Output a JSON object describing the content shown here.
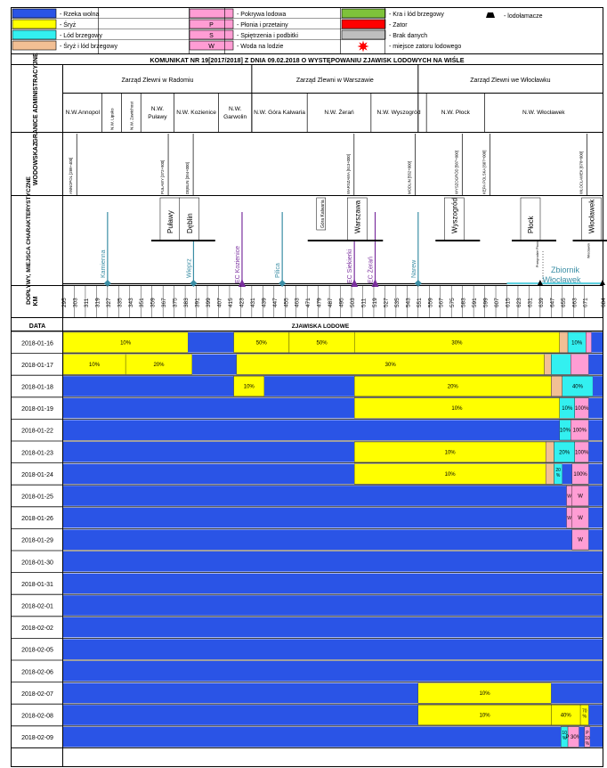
{
  "title": "KOMUNIKAT NR 19[2017/2018] Z DNIA 09.02.2018 O WYSTĘPOWANIU ZJAWISK LODOWYCH NA WIŚLE",
  "colors": {
    "wolna": "#2a54e6",
    "sryz": "#ffff00",
    "lod": "#33f0f0",
    "sryzlod": "#f2bf94",
    "pokrywa": "#ff9dd4",
    "kra": "#7ec23a",
    "zator": "#ff0000",
    "brak": "#bfbfbf",
    "border": "#000000"
  },
  "legend": [
    {
      "key": "wolna",
      "label": "- Rzeka wolna"
    },
    {
      "key": "sryz",
      "label": "- Śryż"
    },
    {
      "key": "lod",
      "label": "- Lód brzegowy"
    },
    {
      "key": "sryzlod",
      "label": "- Śryż i lód brzegowy"
    },
    {
      "key": "pokrywa",
      "label": "- Pokrywa lodowa"
    },
    {
      "key": "P",
      "label": "- Płonia i przetainy"
    },
    {
      "key": "S",
      "label": "- Spiętrzenia i podbitki"
    },
    {
      "key": "W",
      "label": "- Woda na lodzie"
    },
    {
      "key": "kra",
      "label": "- Kra i lód brzegowy"
    },
    {
      "key": "zator",
      "label": "- Zator"
    },
    {
      "key": "brak",
      "label": "- Brak danych"
    },
    {
      "key": "burst",
      "label": "- miejsce zatoru lodowego"
    },
    {
      "key": "ship",
      "label": "- lodołamacze"
    }
  ],
  "rows_labels": {
    "admin": "GRANICE ADMINISTRACYJNE",
    "wodowskaz": "WODOWSKAZ",
    "doplywy": "DOPŁYWY, MIEJSCA CHARAKTERYSTYCZNE",
    "km": "KM",
    "data": "DATA",
    "zjawiska": "ZJAWISKA LODOWE"
  },
  "zarzady": [
    "Zarząd Zlewni w Radomiu",
    "Zarząd Zlewni w Warszawie",
    "Zarząd Zlewni we Włocławku"
  ],
  "nadzory": [
    {
      "km": [
        295,
        323
      ],
      "label": "N.W.Annopol"
    },
    {
      "km": [
        323,
        337
      ],
      "label": "N.W. Lipsko",
      "vertical": true
    },
    {
      "km": [
        337,
        351
      ],
      "label": "N.W. Zawichost",
      "vertical": true
    },
    {
      "km": [
        351,
        375
      ],
      "label": "N.W. Puławy"
    },
    {
      "km": [
        375,
        407
      ],
      "label": "N.W. Kozienice"
    },
    {
      "km": [
        407,
        431
      ],
      "label": "N.W. Garwolin"
    },
    {
      "km": [
        431,
        471
      ],
      "label": "N.W. Góra Kalwaria"
    },
    {
      "km": [
        471,
        517
      ],
      "label": "N.W. Żerań"
    },
    {
      "km": [
        517,
        557
      ],
      "label": "N.W. Wyszogród"
    },
    {
      "km": [
        557,
        599
      ],
      "label": "N.W. Płock"
    },
    {
      "km": [
        599,
        684
      ],
      "label": "N.W. Włocławek"
    }
  ],
  "wodowskazy": [
    {
      "km": 299,
      "label": "ANNOPOL [289+400]"
    },
    {
      "km": 365,
      "label": "PUŁAWY [372+900]"
    },
    {
      "km": 383,
      "label": "DĘBLIN [394+000]"
    },
    {
      "km": 499,
      "label": "WARSZAWA [513+000]"
    },
    {
      "km": 543,
      "label": "MODLIN [552+000]"
    },
    {
      "km": 577,
      "label": "WYSZOGRÓD [587+000]"
    },
    {
      "km": 597,
      "label": "KĘPA POLSKA [607+000]"
    },
    {
      "km": 667,
      "label": "WŁOCŁAWEK [678+000]"
    }
  ],
  "doplywy": [
    {
      "km": 327,
      "label": "Kamienna",
      "kind": "teal"
    },
    {
      "km": 389,
      "label": "Wieprz",
      "kind": "teal"
    },
    {
      "km": 424,
      "label": "EC Kozienice",
      "kind": "purple"
    },
    {
      "km": 453,
      "label": "Pilica",
      "kind": "teal"
    },
    {
      "km": 505,
      "label": "EC Siekierki",
      "kind": "purple"
    },
    {
      "km": 520,
      "label": "EC Żerań",
      "kind": "purple"
    },
    {
      "km": 551,
      "label": "Narew",
      "kind": "teal"
    }
  ],
  "miasta": [
    {
      "km": 372,
      "label": "Puławy"
    },
    {
      "km": 386,
      "label": "Dęblin"
    },
    {
      "km": 481,
      "label": "Góra Kalwaria"
    },
    {
      "km": 507,
      "label": "Warszawa"
    },
    {
      "km": 577,
      "label": "Wyszogród"
    },
    {
      "km": 632,
      "label": "Płock"
    },
    {
      "km": 676,
      "label": "Włocławek"
    }
  ],
  "zbiornik": {
    "label_1": "Zbiornik",
    "label_2": "Włocławek",
    "small_1": "Przegrodzie Płock",
    "small_2": "Włocławek"
  },
  "km_ticks": [
    295,
    303,
    311,
    319,
    327,
    335,
    343,
    351,
    359,
    367,
    375,
    383,
    391,
    399,
    407,
    415,
    423,
    431,
    439,
    447,
    455,
    463,
    471,
    479,
    487,
    495,
    503,
    511,
    519,
    527,
    535,
    543,
    551,
    559,
    567,
    575,
    583,
    591,
    599,
    607,
    615,
    623,
    631,
    639,
    647,
    655,
    663,
    671,
    684
  ],
  "chart_data": {
    "type": "table",
    "title": "ZJAWISKA LODOWE",
    "xlabel": "KM",
    "x_range": [
      295,
      684
    ],
    "rows": [
      {
        "date": "2018-01-16",
        "segments": [
          {
            "from": 295,
            "to": 385,
            "state": "sryz",
            "label": "10%"
          },
          {
            "from": 385,
            "to": 418,
            "state": "wolna"
          },
          {
            "from": 418,
            "to": 458,
            "state": "sryz",
            "label": "50%"
          },
          {
            "from": 458,
            "to": 505,
            "state": "sryz",
            "label": "50%"
          },
          {
            "from": 505,
            "to": 653,
            "state": "sryz",
            "label": "30%"
          },
          {
            "from": 653,
            "to": 659,
            "state": "sryzlod"
          },
          {
            "from": 659,
            "to": 672,
            "state": "lod",
            "label": "10%"
          },
          {
            "from": 672,
            "to": 676,
            "state": "pokrywa"
          },
          {
            "from": 676,
            "to": 684,
            "state": "wolna"
          }
        ]
      },
      {
        "date": "2018-01-17",
        "segments": [
          {
            "from": 295,
            "to": 340,
            "state": "sryz",
            "label": "10%"
          },
          {
            "from": 340,
            "to": 388,
            "state": "sryz",
            "label": "20%"
          },
          {
            "from": 388,
            "to": 420,
            "state": "wolna"
          },
          {
            "from": 420,
            "to": 642,
            "state": "sryz",
            "label": "30%"
          },
          {
            "from": 642,
            "to": 647,
            "state": "sryzlod"
          },
          {
            "from": 647,
            "to": 661,
            "state": "lod"
          },
          {
            "from": 661,
            "to": 674,
            "state": "pokrywa"
          },
          {
            "from": 674,
            "to": 684,
            "state": "wolna"
          }
        ]
      },
      {
        "date": "2018-01-18",
        "segments": [
          {
            "from": 295,
            "to": 418,
            "state": "wolna"
          },
          {
            "from": 418,
            "to": 440,
            "state": "sryz",
            "label": "10%"
          },
          {
            "from": 440,
            "to": 505,
            "state": "wolna"
          },
          {
            "from": 505,
            "to": 647,
            "state": "sryz",
            "label": "20%"
          },
          {
            "from": 647,
            "to": 655,
            "state": "sryzlod"
          },
          {
            "from": 655,
            "to": 677,
            "state": "lod",
            "label": "40%"
          },
          {
            "from": 677,
            "to": 684,
            "state": "wolna"
          }
        ]
      },
      {
        "date": "2018-01-19",
        "segments": [
          {
            "from": 295,
            "to": 505,
            "state": "wolna"
          },
          {
            "from": 505,
            "to": 653,
            "state": "sryz",
            "label": "10%"
          },
          {
            "from": 653,
            "to": 664,
            "state": "lod",
            "label": "10%"
          },
          {
            "from": 664,
            "to": 674,
            "state": "pokrywa",
            "label": "100%"
          },
          {
            "from": 674,
            "to": 684,
            "state": "wolna"
          }
        ]
      },
      {
        "date": "2018-01-22",
        "segments": [
          {
            "from": 295,
            "to": 653,
            "state": "wolna"
          },
          {
            "from": 653,
            "to": 661,
            "state": "lod",
            "label": "10%"
          },
          {
            "from": 661,
            "to": 674,
            "state": "pokrywa",
            "label": "100%"
          },
          {
            "from": 674,
            "to": 684,
            "state": "wolna"
          }
        ]
      },
      {
        "date": "2018-01-23",
        "segments": [
          {
            "from": 295,
            "to": 505,
            "state": "wolna"
          },
          {
            "from": 505,
            "to": 643,
            "state": "sryz",
            "label": "10%"
          },
          {
            "from": 643,
            "to": 649,
            "state": "sryzlod"
          },
          {
            "from": 649,
            "to": 664,
            "state": "lod",
            "label": "20%"
          },
          {
            "from": 664,
            "to": 674,
            "state": "pokrywa",
            "label": "100%"
          },
          {
            "from": 674,
            "to": 684,
            "state": "wolna"
          }
        ]
      },
      {
        "date": "2018-01-24",
        "segments": [
          {
            "from": 295,
            "to": 505,
            "state": "wolna"
          },
          {
            "from": 505,
            "to": 643,
            "state": "sryz",
            "label": "10%"
          },
          {
            "from": 643,
            "to": 649,
            "state": "sryzlod"
          },
          {
            "from": 649,
            "to": 655,
            "state": "lod",
            "label": "20 %"
          },
          {
            "from": 655,
            "to": 662,
            "state": "wolna"
          },
          {
            "from": 662,
            "to": 674,
            "state": "pokrywa",
            "label": "100%"
          },
          {
            "from": 674,
            "to": 684,
            "state": "wolna"
          }
        ]
      },
      {
        "date": "2018-01-25",
        "segments": [
          {
            "from": 295,
            "to": 658,
            "state": "wolna"
          },
          {
            "from": 658,
            "to": 662,
            "state": "pokrywa",
            "label": "W"
          },
          {
            "from": 662,
            "to": 674,
            "state": "pokrywa",
            "label": "W"
          },
          {
            "from": 674,
            "to": 684,
            "state": "wolna"
          }
        ]
      },
      {
        "date": "2018-01-26",
        "segments": [
          {
            "from": 295,
            "to": 658,
            "state": "wolna"
          },
          {
            "from": 658,
            "to": 662,
            "state": "pokrywa",
            "label": "W"
          },
          {
            "from": 662,
            "to": 674,
            "state": "pokrywa",
            "label": "W"
          },
          {
            "from": 674,
            "to": 684,
            "state": "wolna"
          }
        ]
      },
      {
        "date": "2018-01-29",
        "segments": [
          {
            "from": 295,
            "to": 662,
            "state": "wolna"
          },
          {
            "from": 662,
            "to": 674,
            "state": "pokrywa",
            "label": "W"
          },
          {
            "from": 674,
            "to": 684,
            "state": "wolna"
          }
        ]
      },
      {
        "date": "2018-01-30",
        "segments": [
          {
            "from": 295,
            "to": 684,
            "state": "wolna"
          }
        ]
      },
      {
        "date": "2018-01-31",
        "segments": [
          {
            "from": 295,
            "to": 684,
            "state": "wolna"
          }
        ]
      },
      {
        "date": "2018-02-01",
        "segments": [
          {
            "from": 295,
            "to": 684,
            "state": "wolna"
          }
        ]
      },
      {
        "date": "2018-02-02",
        "segments": [
          {
            "from": 295,
            "to": 684,
            "state": "wolna"
          }
        ]
      },
      {
        "date": "2018-02-05",
        "segments": [
          {
            "from": 295,
            "to": 684,
            "state": "wolna"
          }
        ]
      },
      {
        "date": "2018-02-06",
        "segments": [
          {
            "from": 295,
            "to": 684,
            "state": "wolna"
          }
        ]
      },
      {
        "date": "2018-02-07",
        "segments": [
          {
            "from": 295,
            "to": 551,
            "state": "wolna"
          },
          {
            "from": 551,
            "to": 647,
            "state": "sryz",
            "label": "10%"
          },
          {
            "from": 647,
            "to": 684,
            "state": "wolna"
          }
        ]
      },
      {
        "date": "2018-02-08",
        "segments": [
          {
            "from": 295,
            "to": 551,
            "state": "wolna"
          },
          {
            "from": 551,
            "to": 647,
            "state": "sryz",
            "label": "10%"
          },
          {
            "from": 647,
            "to": 668,
            "state": "sryz",
            "label": "40%"
          },
          {
            "from": 668,
            "to": 674,
            "state": "sryz",
            "label": "70 %"
          },
          {
            "from": 674,
            "to": 684,
            "state": "wolna"
          }
        ]
      },
      {
        "date": "2018-02-09",
        "segments": [
          {
            "from": 295,
            "to": 654,
            "state": "wolna"
          },
          {
            "from": 654,
            "to": 659,
            "state": "lod",
            "label": "10 %"
          },
          {
            "from": 659,
            "to": 667,
            "state": "pokrywa",
            "label": "P 30%"
          },
          {
            "from": 667,
            "to": 671,
            "state": "wolna"
          },
          {
            "from": 671,
            "to": 675,
            "state": "pokrywa",
            "label": "P 10 %"
          },
          {
            "from": 675,
            "to": 684,
            "state": "wolna"
          }
        ]
      }
    ]
  }
}
